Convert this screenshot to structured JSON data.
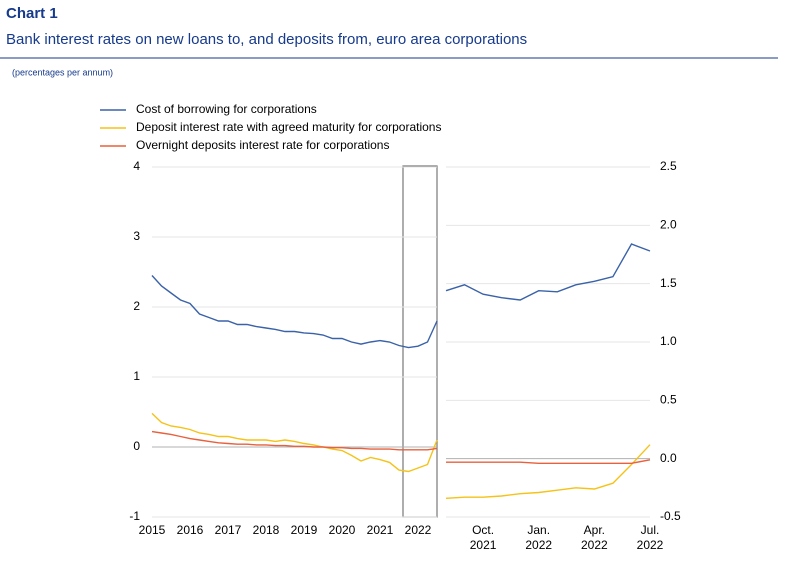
{
  "chart_data": [
    {
      "type": "line",
      "title": "Chart 1",
      "subtitle": "Bank interest rates on new loans to, and deposits from, euro area corporations",
      "note": "(percentages per annum)",
      "x": [
        2015,
        2015.25,
        2015.5,
        2015.75,
        2016,
        2016.25,
        2016.5,
        2016.75,
        2017,
        2017.25,
        2017.5,
        2017.75,
        2018,
        2018.25,
        2018.5,
        2018.75,
        2019,
        2019.25,
        2019.5,
        2019.75,
        2020,
        2020.25,
        2020.5,
        2020.75,
        2021,
        2021.25,
        2021.5,
        2021.75,
        2022,
        2022.25,
        2022.5
      ],
      "xlim": [
        2015,
        2022.5
      ],
      "xticks": [
        2015,
        2016,
        2017,
        2018,
        2019,
        2020,
        2021,
        2022
      ],
      "ylim": [
        -1,
        4
      ],
      "yticks": [
        -1,
        0,
        1,
        2,
        3,
        4
      ],
      "grid": true,
      "series": [
        {
          "name": "Cost of borrowing for corporations",
          "color": "#3a62a8",
          "values": [
            2.45,
            2.3,
            2.2,
            2.1,
            2.05,
            1.9,
            1.85,
            1.8,
            1.8,
            1.75,
            1.75,
            1.72,
            1.7,
            1.68,
            1.65,
            1.65,
            1.63,
            1.62,
            1.6,
            1.55,
            1.55,
            1.5,
            1.47,
            1.5,
            1.52,
            1.5,
            1.45,
            1.42,
            1.44,
            1.5,
            1.8
          ]
        },
        {
          "name": "Deposit interest rate with agreed maturity for corporations",
          "color": "#f5c218",
          "values": [
            0.48,
            0.35,
            0.3,
            0.28,
            0.25,
            0.2,
            0.18,
            0.15,
            0.15,
            0.12,
            0.1,
            0.1,
            0.1,
            0.08,
            0.1,
            0.08,
            0.05,
            0.03,
            0,
            -0.03,
            -0.05,
            -0.12,
            -0.2,
            -0.15,
            -0.18,
            -0.22,
            -0.33,
            -0.35,
            -0.3,
            -0.25,
            0.1
          ]
        },
        {
          "name": "Overnight deposits interest rate for corporations",
          "color": "#e8603c",
          "values": [
            0.22,
            0.2,
            0.18,
            0.15,
            0.12,
            0.1,
            0.08,
            0.06,
            0.05,
            0.04,
            0.04,
            0.03,
            0.03,
            0.02,
            0.02,
            0.01,
            0.01,
            0,
            0,
            -0.01,
            -0.01,
            -0.02,
            -0.02,
            -0.03,
            -0.03,
            -0.03,
            -0.04,
            -0.04,
            -0.04,
            -0.04,
            -0.02
          ]
        }
      ]
    },
    {
      "type": "line",
      "categories": [
        null,
        null,
        "Oct.",
        null,
        null,
        "Jan.",
        null,
        null,
        "Apr.",
        null,
        null,
        "Jul."
      ],
      "category_years": [
        null,
        null,
        "2021",
        null,
        null,
        "2022",
        null,
        null,
        "2022",
        null,
        null,
        "2022"
      ],
      "y2lim": [
        -0.5,
        2.5
      ],
      "y2ticks": [
        -0.5,
        {
          "value": 0,
          "label": "0.0"
        },
        0.5,
        {
          "value": 1,
          "label": "1.0"
        },
        1.5,
        {
          "value": 2,
          "label": "2.0"
        },
        2.5
      ],
      "grid": true,
      "series": [
        {
          "color": "#3a62a8",
          "axis": "y2",
          "values": [
            1.44,
            1.49,
            1.41,
            1.38,
            1.36,
            1.44,
            1.43,
            1.49,
            1.52,
            1.56,
            1.84,
            1.78
          ]
        },
        {
          "color": "#f5c218",
          "axis": "y2",
          "values": [
            -0.34,
            -0.33,
            -0.33,
            -0.32,
            -0.3,
            -0.29,
            -0.27,
            -0.25,
            -0.26,
            -0.21,
            -0.05,
            0.12
          ]
        },
        {
          "color": "#e8603c",
          "axis": "y2",
          "values": [
            -0.03,
            -0.03,
            -0.03,
            -0.03,
            -0.03,
            -0.04,
            -0.04,
            -0.04,
            -0.04,
            -0.04,
            -0.04,
            -0.01
          ]
        }
      ]
    }
  ]
}
